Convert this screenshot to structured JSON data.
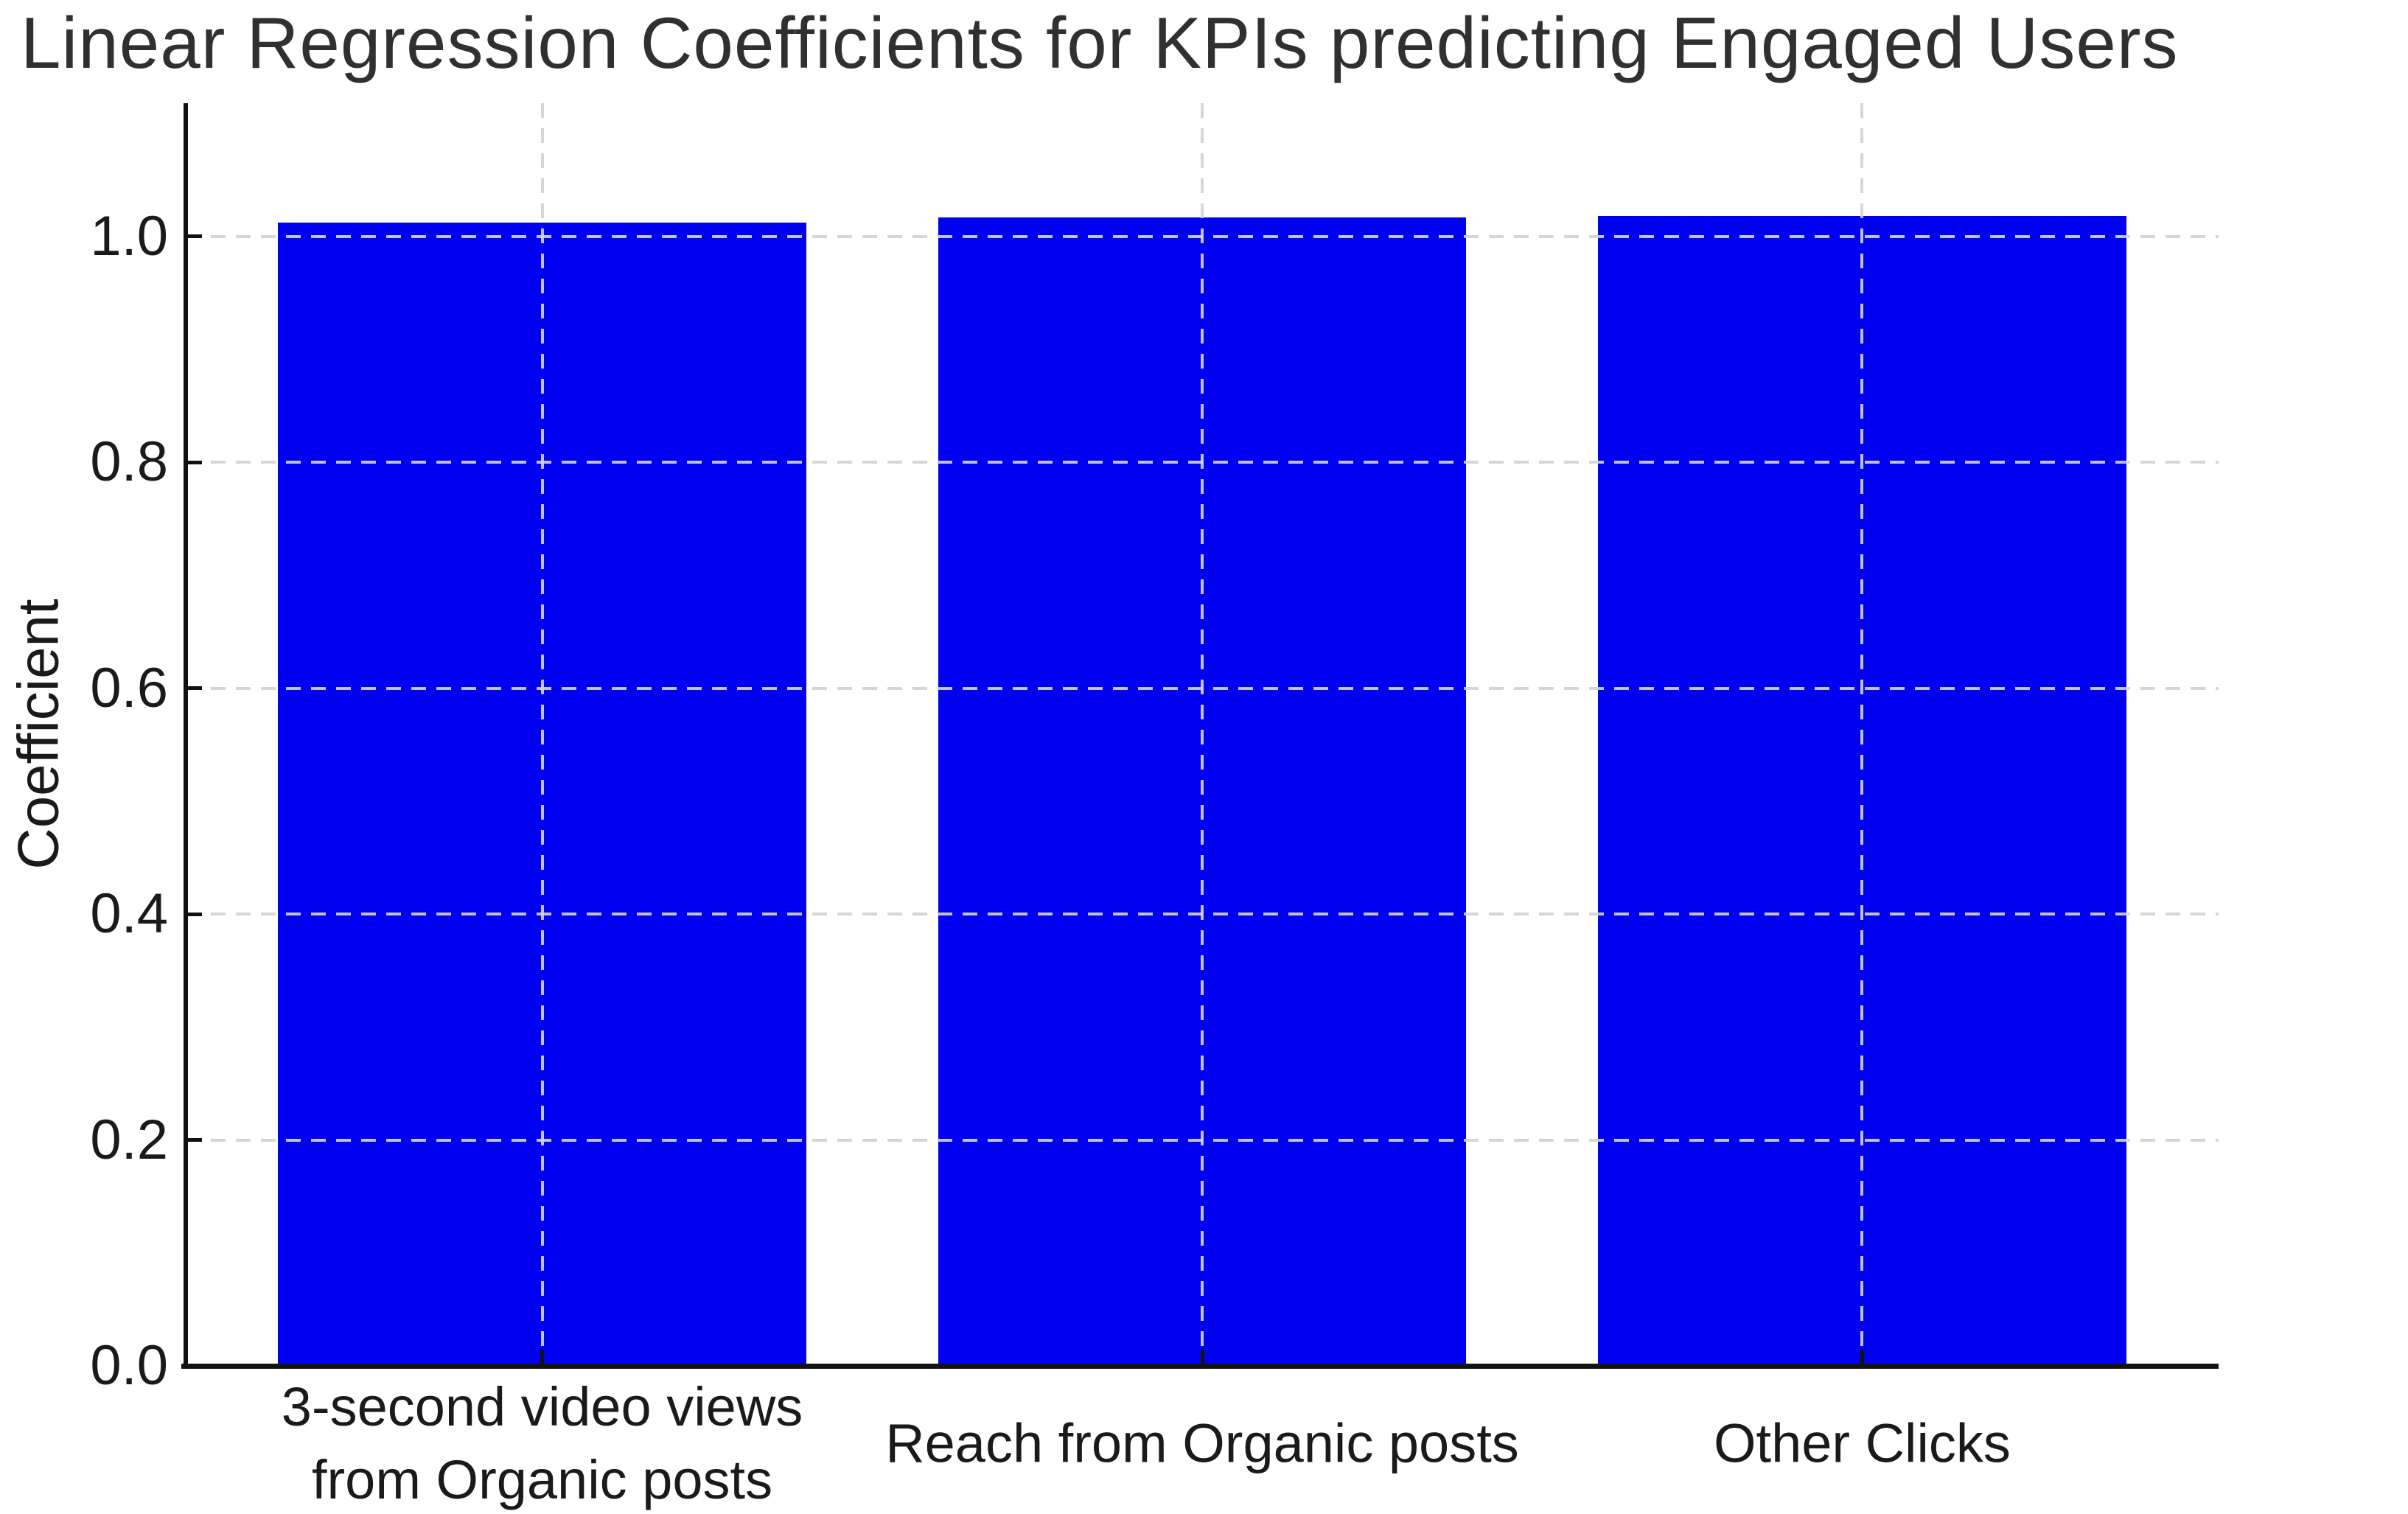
{
  "figure": {
    "background": "#ffffff",
    "text_color": "#1a1a1a",
    "title_color": "#303030",
    "grid_color": "#d2d2d2",
    "spine_color": "#111111"
  },
  "chart_data": {
    "type": "bar",
    "title": "Linear Regression Coefficients for KPIs predicting Engaged Users",
    "xlabel": "",
    "ylabel": "Coefficient",
    "categories": [
      "3-second video views\nfrom Organic posts",
      "Reach from Organic posts",
      "Other Clicks"
    ],
    "values": [
      1.012,
      1.017,
      1.018
    ],
    "bar_color": "#0101f2",
    "bar_width": 0.8,
    "yticks": [
      0.0,
      0.2,
      0.4,
      0.6,
      0.8,
      1.0
    ],
    "ytick_labels": [
      "0.0",
      "0.2",
      "0.4",
      "0.6",
      "0.8",
      "1.0"
    ],
    "ylim": [
      0,
      1.118
    ],
    "xlim": [
      -0.54,
      2.54
    ],
    "grid": "dashed, horizontal at yticks above 0 and vertical at bar centers, drawn over bars",
    "legend": "none"
  }
}
